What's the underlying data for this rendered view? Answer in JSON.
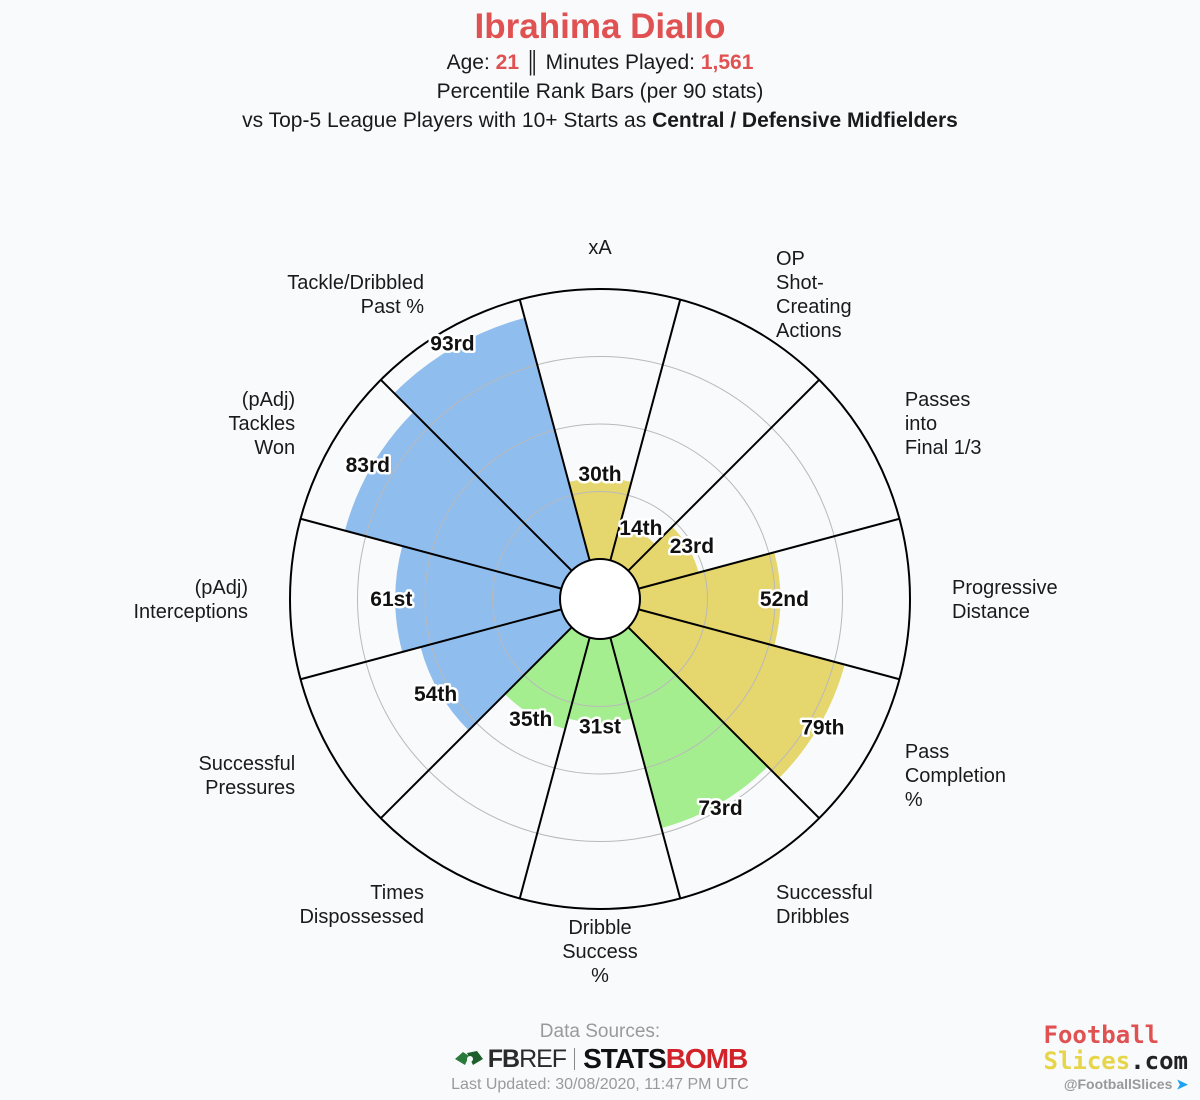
{
  "title": "Ibrahima Diallo",
  "subtitle": {
    "age_label": "Age:",
    "age": "21",
    "divider": "║",
    "minutes_label": "Minutes Played:",
    "minutes": "1,561",
    "line2": "Percentile Rank Bars (per 90 stats)",
    "line3_prefix": "vs Top-5 League Players with 10+ Starts as",
    "line3_position": "Central / Defensive Midfielders"
  },
  "colors": {
    "title": "#e05252",
    "passing": "#e6d66e",
    "dribbling": "#a5ee8f",
    "defending": "#8fbdee"
  },
  "chart_data": {
    "type": "polar-bar",
    "scale_max": 100,
    "gridlines": [
      25,
      50,
      75
    ],
    "metrics": [
      {
        "label": [
          "xA"
        ],
        "value": 30,
        "value_label": "30th",
        "group": "passing"
      },
      {
        "label": [
          "OP",
          "Shot-",
          "Creating",
          "Actions"
        ],
        "value": 14,
        "value_label": "14th",
        "group": "passing"
      },
      {
        "label": [
          "Passes",
          "into",
          "Final 1/3"
        ],
        "value": 23,
        "value_label": "23rd",
        "group": "passing"
      },
      {
        "label": [
          "Progressive",
          "Distance"
        ],
        "value": 52,
        "value_label": "52nd",
        "group": "passing"
      },
      {
        "label": [
          "Pass",
          "Completion",
          "%"
        ],
        "value": 79,
        "value_label": "79th",
        "group": "passing"
      },
      {
        "label": [
          "Successful",
          "Dribbles"
        ],
        "value": 73,
        "value_label": "73rd",
        "group": "dribbling"
      },
      {
        "label": [
          "Dribble",
          "Success",
          "%"
        ],
        "value": 31,
        "value_label": "31st",
        "group": "dribbling"
      },
      {
        "label": [
          "Times",
          "Dispossessed"
        ],
        "value": 35,
        "value_label": "35th",
        "group": "dribbling"
      },
      {
        "label": [
          "Successful",
          "Pressures"
        ],
        "value": 54,
        "value_label": "54th",
        "group": "defending"
      },
      {
        "label": [
          "(pAdj)",
          "Interceptions"
        ],
        "value": 61,
        "value_label": "61st",
        "group": "defending"
      },
      {
        "label": [
          "(pAdj)",
          "Tackles",
          "Won"
        ],
        "value": 83,
        "value_label": "83rd",
        "group": "defending"
      },
      {
        "label": [
          "Tackle/Dribbled",
          "Past %"
        ],
        "value": 93,
        "value_label": "93rd",
        "group": "defending"
      }
    ]
  },
  "footer": {
    "sources_label": "Data Sources:",
    "fbref_a": "FB",
    "fbref_b": "REF",
    "statsbomb_a": "STATS",
    "statsbomb_b": "BOMB",
    "updated": "Last Updated: 30/08/2020, 11:47 PM UTC"
  },
  "brand": {
    "line1": "Football",
    "line2_a": "Slices",
    "line2_b": ".com",
    "handle": "@FootballSlices",
    "handle_icon": "twitter-bird-icon"
  }
}
